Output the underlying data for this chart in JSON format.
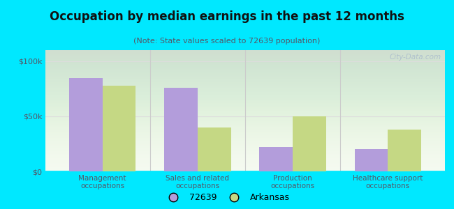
{
  "title": "Occupation by median earnings in the past 12 months",
  "subtitle": "(Note: State values scaled to 72639 population)",
  "categories": [
    "Management\noccupations",
    "Sales and related\noccupations",
    "Production\noccupations",
    "Healthcare support\noccupations"
  ],
  "values_72639": [
    85000,
    76000,
    22000,
    20000
  ],
  "values_arkansas": [
    78000,
    40000,
    50000,
    38000
  ],
  "color_72639": "#b39ddb",
  "color_arkansas": "#c5d884",
  "background_outer": "#00e8ff",
  "background_chart_top": "#e8f0d8",
  "background_chart_bottom": "#f5faf0",
  "yticks": [
    0,
    50000,
    100000
  ],
  "ytick_labels": [
    "$0",
    "$50k",
    "$100k"
  ],
  "ylim": [
    0,
    110000
  ],
  "legend_label_72639": "72639",
  "legend_label_arkansas": "Arkansas",
  "watermark": "City-Data.com",
  "bar_width": 0.35,
  "separator_color": "#cccccc",
  "grid_color": "#dddddd",
  "text_color": "#555566",
  "title_color": "#111111"
}
